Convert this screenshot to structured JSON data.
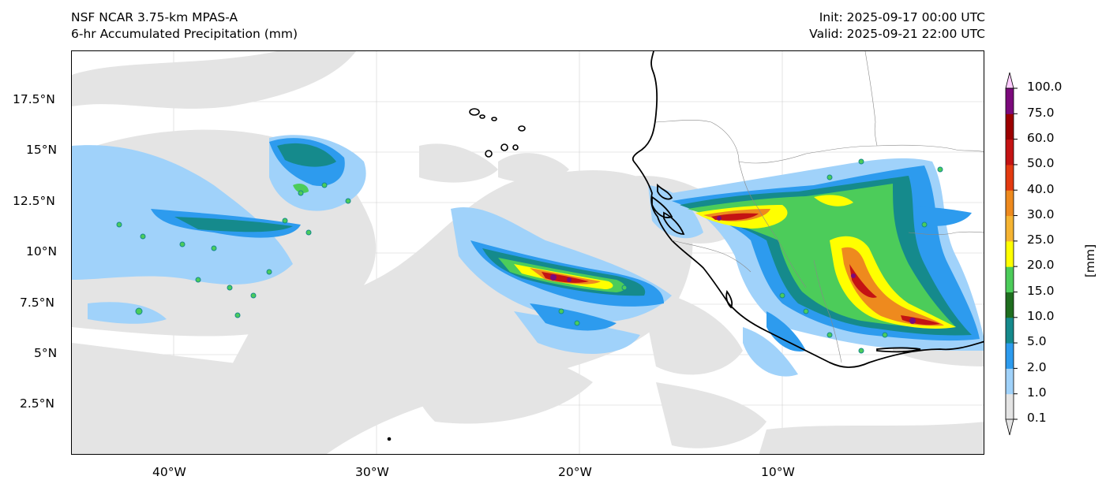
{
  "title": {
    "left_line1": "NSF NCAR 3.75-km MPAS-A",
    "left_line2": "6-hr Accumulated Precipitation (mm)",
    "right_line1": "Init: 2025-09-17 00:00 UTC",
    "right_line2": "Valid: 2025-09-21 22:00 UTC"
  },
  "map": {
    "lon_range": [
      -45.5,
      0.5
    ],
    "lat_range": [
      0,
      20
    ],
    "lon_ticks": [
      "40°W",
      "30°W",
      "20°W",
      "10°W"
    ],
    "lat_ticks": [
      "17.5°N",
      "15°N",
      "12.5°N",
      "10°N",
      "7.5°N",
      "5°N",
      "2.5°N"
    ],
    "gridlines": true
  },
  "colorbar": {
    "unit_label": "[mm]",
    "levels": [
      "0.1",
      "1.0",
      "2.0",
      "5.0",
      "10.0",
      "15.0",
      "20.0",
      "25.0",
      "30.0",
      "40.0",
      "50.0",
      "60.0",
      "75.0",
      "100.0"
    ],
    "colors": [
      "#e4e4e4",
      "#a0d2fa",
      "#2d9bee",
      "#158a8c",
      "#1f6e1f",
      "#4ccc5a",
      "#ffff00",
      "#f5b432",
      "#ee8a1e",
      "#e33a10",
      "#c41313",
      "#9c0000",
      "#7b0a7b",
      "#ff55ff"
    ],
    "extend": "both"
  }
}
